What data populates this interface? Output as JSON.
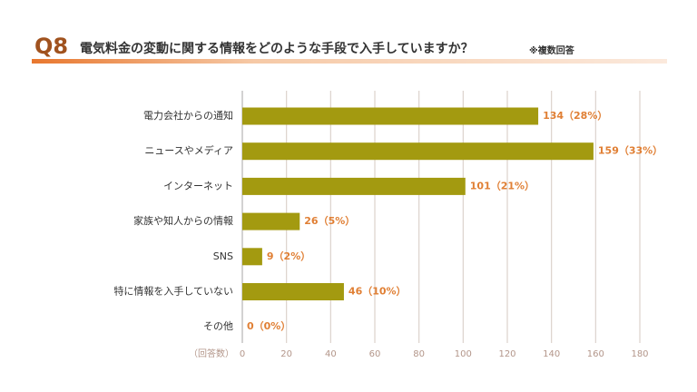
{
  "chart_data": {
    "type": "hbar",
    "question_number": "Q8",
    "title": "電気料金の変動に関する情報をどのような手段で入手していますか？",
    "title_note": "※複数回答",
    "x_label": "（回答数）",
    "categories": [
      "電力会社からの通知",
      "ニュースやメディア",
      "インターネット",
      "家族や知人からの情報",
      "SNS",
      "特に情報を入手していない",
      "その他"
    ],
    "values": [
      134,
      159,
      101,
      26,
      9,
      46,
      0
    ],
    "value_labels": [
      "134（28%）",
      "159（33%）",
      "101（21%）",
      "26（5%）",
      "9（2%）",
      "46（10%）",
      "0（0%）"
    ],
    "color": "#a39a10",
    "label_color": "#e07f34",
    "xlim": [
      0,
      180
    ],
    "xticks": [
      0,
      20,
      40,
      60,
      80,
      100,
      120,
      140,
      160,
      180
    ],
    "grid": true
  }
}
